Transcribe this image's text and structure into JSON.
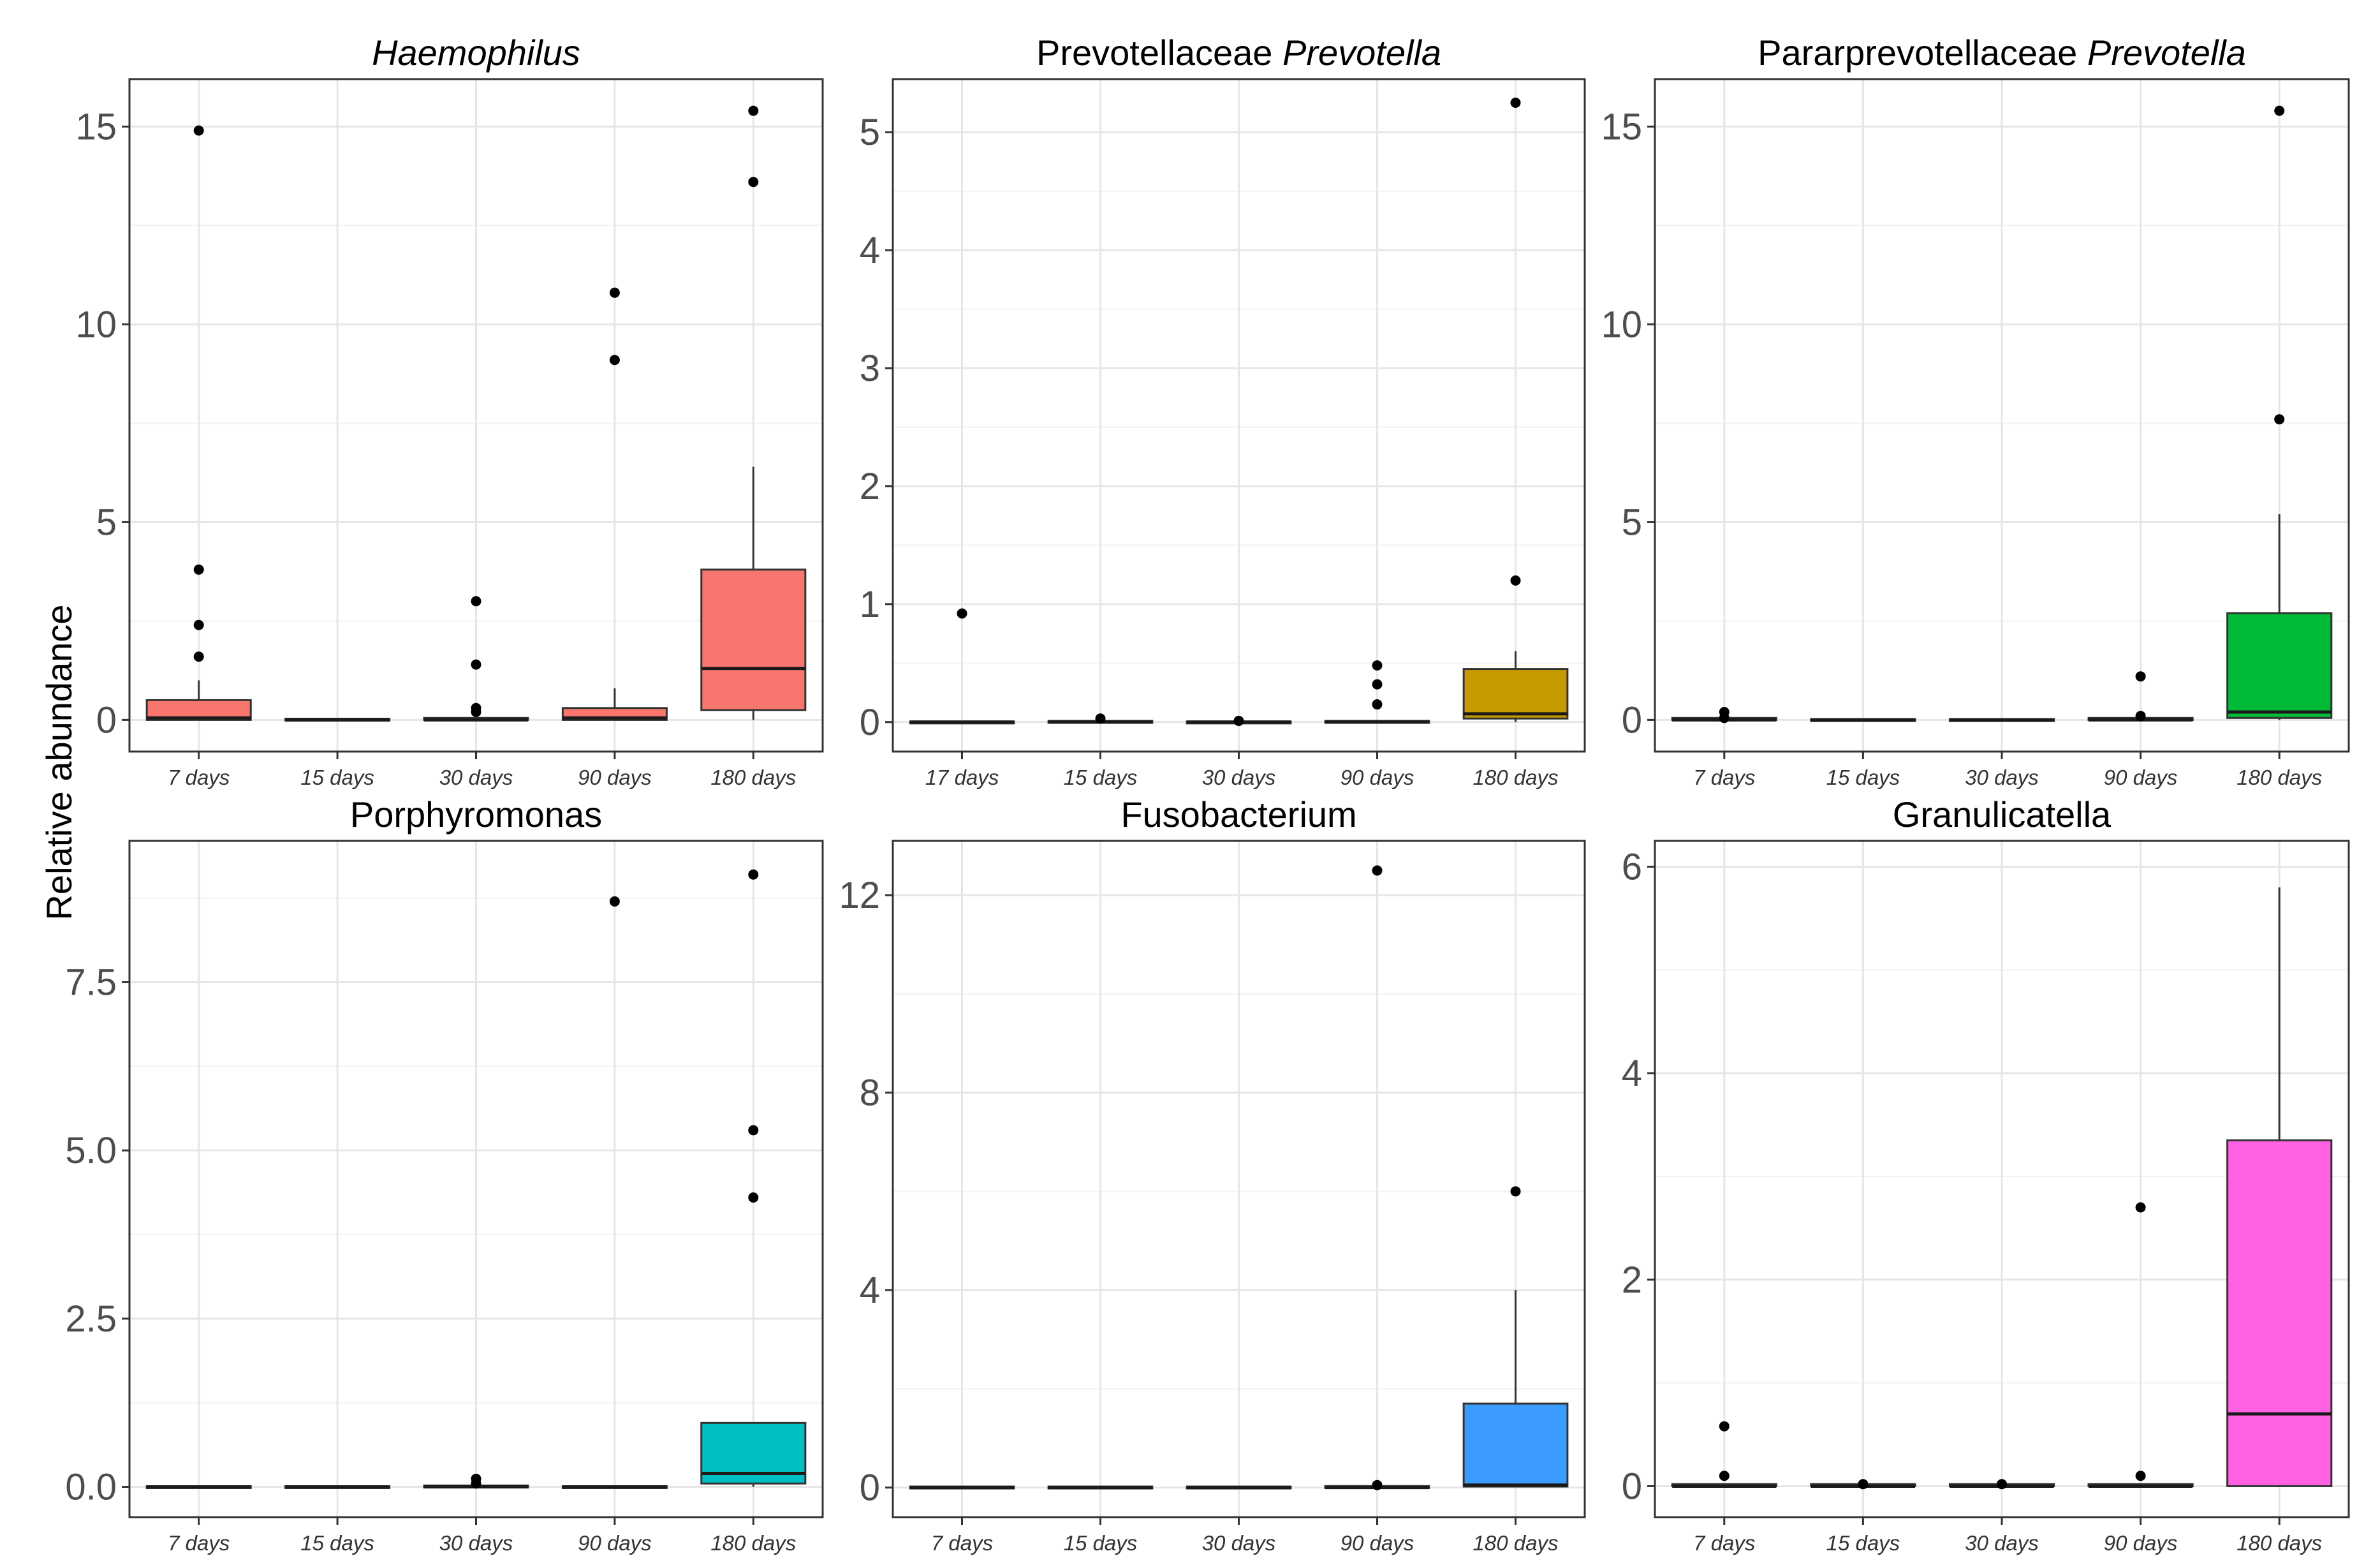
{
  "y_axis_label": "Relative abundance",
  "chart_data": [
    {
      "type": "box",
      "title_parts": [
        {
          "text": "Haemophilus",
          "italic": true
        }
      ],
      "categories": [
        "7 days",
        "15 days",
        "30 days",
        "90 days",
        "180 days"
      ],
      "ylim": [
        -0.8,
        16.2
      ],
      "yticks": [
        0,
        5,
        10,
        15
      ],
      "ytick_labels": [
        "0",
        "5",
        "10",
        "15"
      ],
      "fill_color": "#F8766D",
      "boxes": [
        {
          "q1": 0,
          "median": 0.05,
          "q3": 0.5,
          "whisker_low": 0,
          "whisker_high": 1.0,
          "outliers": [
            1.6,
            2.4,
            3.8,
            14.9
          ]
        },
        {
          "q1": 0,
          "median": 0,
          "q3": 0.03,
          "whisker_low": 0,
          "whisker_high": 0.03,
          "outliers": []
        },
        {
          "q1": 0,
          "median": 0,
          "q3": 0.05,
          "whisker_low": 0,
          "whisker_high": 0.08,
          "outliers": [
            0.2,
            0.3,
            1.4,
            3.0
          ]
        },
        {
          "q1": 0,
          "median": 0.05,
          "q3": 0.3,
          "whisker_low": 0,
          "whisker_high": 0.8,
          "outliers": [
            9.1,
            10.8
          ]
        },
        {
          "q1": 0.25,
          "median": 1.3,
          "q3": 3.8,
          "whisker_low": 0,
          "whisker_high": 6.4,
          "outliers": [
            13.6,
            15.4
          ]
        }
      ]
    },
    {
      "type": "box",
      "title_parts": [
        {
          "text": "Prevotellaceae ",
          "italic": false
        },
        {
          "text": "Prevotella",
          "italic": true
        }
      ],
      "categories": [
        "17 days",
        "15 days",
        "30 days",
        "90 days",
        "180 days"
      ],
      "ylim": [
        -0.25,
        5.45
      ],
      "yticks": [
        0,
        1,
        2,
        3,
        4,
        5
      ],
      "ytick_labels": [
        "0",
        "1",
        "2",
        "3",
        "4",
        "5"
      ],
      "fill_color": "#C49A00",
      "boxes": [
        {
          "q1": 0,
          "median": 0,
          "q3": 0.005,
          "whisker_low": 0,
          "whisker_high": 0.005,
          "outliers": [
            0.92
          ]
        },
        {
          "q1": 0,
          "median": 0,
          "q3": 0.01,
          "whisker_low": 0,
          "whisker_high": 0.01,
          "outliers": [
            0.03
          ]
        },
        {
          "q1": 0,
          "median": 0,
          "q3": 0.005,
          "whisker_low": 0,
          "whisker_high": 0.005,
          "outliers": [
            0.01
          ]
        },
        {
          "q1": 0,
          "median": 0,
          "q3": 0.01,
          "whisker_low": 0,
          "whisker_high": 0.01,
          "outliers": [
            0.15,
            0.32,
            0.48
          ]
        },
        {
          "q1": 0.03,
          "median": 0.07,
          "q3": 0.45,
          "whisker_low": 0,
          "whisker_high": 0.6,
          "outliers": [
            1.2,
            5.25
          ]
        }
      ]
    },
    {
      "type": "box",
      "title_parts": [
        {
          "text": "Pararprevotellaceae ",
          "italic": false
        },
        {
          "text": "Prevotella",
          "italic": true
        }
      ],
      "categories": [
        "7 days",
        "15 days",
        "30 days",
        "90 days",
        "180 days"
      ],
      "ylim": [
        -0.8,
        16.2
      ],
      "yticks": [
        0,
        5,
        10,
        15
      ],
      "ytick_labels": [
        "0",
        "5",
        "10",
        "15"
      ],
      "fill_color": "#00BA38",
      "boxes": [
        {
          "q1": 0,
          "median": 0,
          "q3": 0.05,
          "whisker_low": 0,
          "whisker_high": 0.05,
          "outliers": [
            0.05,
            0.2
          ]
        },
        {
          "q1": 0,
          "median": 0,
          "q3": 0.02,
          "whisker_low": 0,
          "whisker_high": 0.02,
          "outliers": []
        },
        {
          "q1": 0,
          "median": 0,
          "q3": 0.02,
          "whisker_low": 0,
          "whisker_high": 0.02,
          "outliers": []
        },
        {
          "q1": 0,
          "median": 0,
          "q3": 0.05,
          "whisker_low": 0,
          "whisker_high": 0.05,
          "outliers": [
            0.1,
            1.1
          ]
        },
        {
          "q1": 0.05,
          "median": 0.2,
          "q3": 2.7,
          "whisker_low": 0,
          "whisker_high": 5.2,
          "outliers": [
            7.6,
            15.4
          ]
        }
      ]
    },
    {
      "type": "box",
      "title_parts": [
        {
          "text": "Porphyromonas",
          "italic": false
        }
      ],
      "categories": [
        "7 days",
        "15 days",
        "30 days",
        "90 days",
        "180 days"
      ],
      "ylim": [
        -0.45,
        9.6
      ],
      "yticks": [
        0,
        2.5,
        5,
        7.5
      ],
      "ytick_labels": [
        "0.0",
        "2.5",
        "5.0",
        "7.5"
      ],
      "fill_color": "#00BFC4",
      "boxes": [
        {
          "q1": 0,
          "median": 0,
          "q3": 0.01,
          "whisker_low": 0,
          "whisker_high": 0.01,
          "outliers": []
        },
        {
          "q1": 0,
          "median": 0,
          "q3": 0.01,
          "whisker_low": 0,
          "whisker_high": 0.01,
          "outliers": []
        },
        {
          "q1": 0,
          "median": 0,
          "q3": 0.02,
          "whisker_low": 0,
          "whisker_high": 0.02,
          "outliers": [
            0.05,
            0.12
          ]
        },
        {
          "q1": 0,
          "median": 0,
          "q3": 0.01,
          "whisker_low": 0,
          "whisker_high": 0.01,
          "outliers": [
            8.7
          ]
        },
        {
          "q1": 0.05,
          "median": 0.2,
          "q3": 0.95,
          "whisker_low": 0,
          "whisker_high": 0.95,
          "outliers": [
            4.3,
            5.3,
            9.1
          ]
        }
      ]
    },
    {
      "type": "box",
      "title_parts": [
        {
          "text": "Fusobacterium",
          "italic": false
        }
      ],
      "categories": [
        "7 days",
        "15 days",
        "30 days",
        "90 days",
        "180 days"
      ],
      "ylim": [
        -0.6,
        13.1
      ],
      "yticks": [
        0,
        4,
        8,
        12
      ],
      "ytick_labels": [
        "0",
        "4",
        "8",
        "12"
      ],
      "fill_color": "#3B9BFF",
      "boxes": [
        {
          "q1": 0,
          "median": 0,
          "q3": 0.02,
          "whisker_low": 0,
          "whisker_high": 0.02,
          "outliers": []
        },
        {
          "q1": 0,
          "median": 0,
          "q3": 0.02,
          "whisker_low": 0,
          "whisker_high": 0.02,
          "outliers": []
        },
        {
          "q1": 0,
          "median": 0,
          "q3": 0.02,
          "whisker_low": 0,
          "whisker_high": 0.02,
          "outliers": []
        },
        {
          "q1": 0,
          "median": 0,
          "q3": 0.03,
          "whisker_low": 0,
          "whisker_high": 0.03,
          "outliers": [
            0.05,
            12.5
          ]
        },
        {
          "q1": 0.02,
          "median": 0.05,
          "q3": 1.7,
          "whisker_low": 0,
          "whisker_high": 4.0,
          "outliers": [
            6.0
          ]
        }
      ]
    },
    {
      "type": "box",
      "title_parts": [
        {
          "text": "Granulicatella",
          "italic": false
        }
      ],
      "categories": [
        "7 days",
        "15 days",
        "30 days",
        "90 days",
        "180 days"
      ],
      "ylim": [
        -0.3,
        6.25
      ],
      "yticks": [
        0,
        2,
        4,
        6
      ],
      "ytick_labels": [
        "0",
        "2",
        "4",
        "6"
      ],
      "fill_color": "#FF61E2",
      "boxes": [
        {
          "q1": 0,
          "median": 0,
          "q3": 0.02,
          "whisker_low": 0,
          "whisker_high": 0.02,
          "outliers": [
            0.1,
            0.58
          ]
        },
        {
          "q1": 0,
          "median": 0,
          "q3": 0.02,
          "whisker_low": 0,
          "whisker_high": 0.02,
          "outliers": [
            0.02
          ]
        },
        {
          "q1": 0,
          "median": 0,
          "q3": 0.02,
          "whisker_low": 0,
          "whisker_high": 0.02,
          "outliers": [
            0.02
          ]
        },
        {
          "q1": 0,
          "median": 0,
          "q3": 0.02,
          "whisker_low": 0,
          "whisker_high": 0.02,
          "outliers": [
            0.1,
            2.7
          ]
        },
        {
          "q1": 0,
          "median": 0.7,
          "q3": 3.35,
          "whisker_low": 0,
          "whisker_high": 5.8,
          "outliers": []
        }
      ]
    }
  ]
}
